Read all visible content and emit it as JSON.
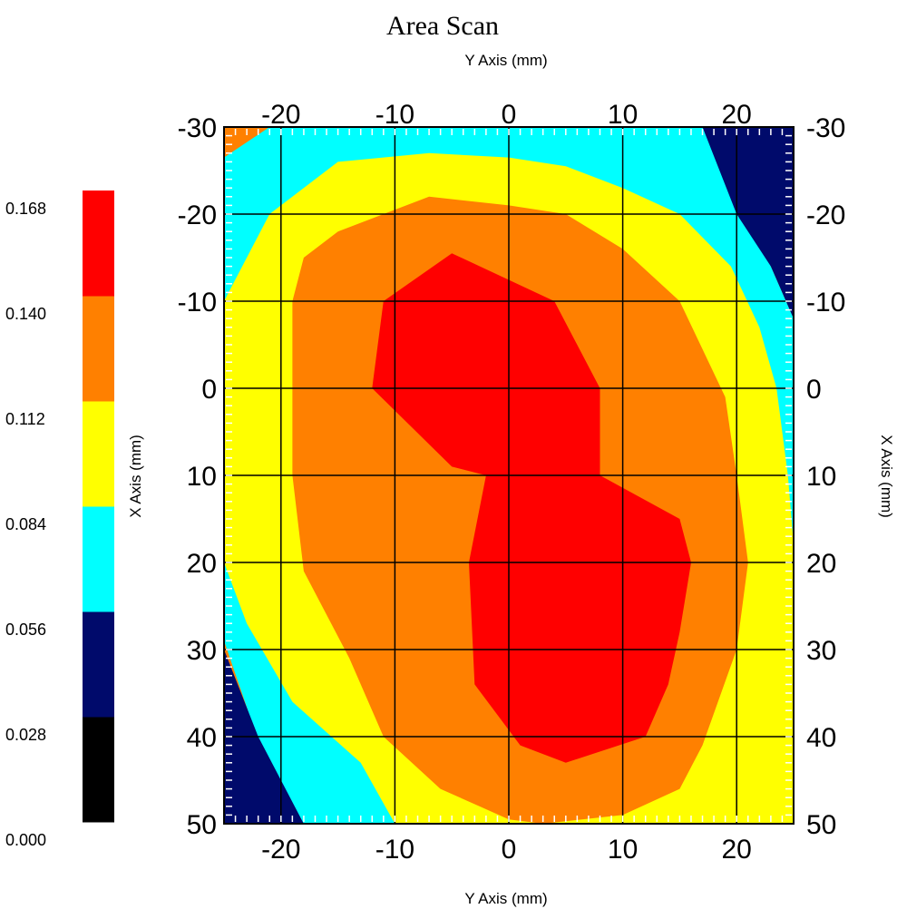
{
  "chart_data": {
    "type": "heatmap",
    "subtype": "filled-contour",
    "title": "Area Scan",
    "xlabel_top": "Y Axis (mm)",
    "xlabel_bottom": "Y Axis (mm)",
    "ylabel_left": "X Axis (mm)",
    "ylabel_right": "X Axis (mm)",
    "x_range": [
      -25,
      25
    ],
    "y_range": [
      -30,
      50
    ],
    "y_reversed": true,
    "x_ticks": [
      -20,
      -10,
      0,
      10,
      20
    ],
    "y_ticks": [
      -30,
      -20,
      -10,
      0,
      10,
      20,
      30,
      40,
      50
    ],
    "grid": true,
    "colorbar": {
      "position": "left",
      "levels": [
        "0.000",
        "0.028",
        "0.056",
        "0.084",
        "0.112",
        "0.140",
        "0.168"
      ],
      "colors": [
        "#000000",
        "#000a6b",
        "#00ffff",
        "#ffff00",
        "#ff8000",
        "#ff0000"
      ]
    },
    "contour_regions": [
      {
        "level": "0.056-0.084",
        "color": "#00ffff",
        "polygon": [
          [
            -25,
            -26.5
          ],
          [
            -21,
            -30
          ],
          [
            18,
            -30
          ],
          [
            23,
            -14
          ],
          [
            25,
            -8
          ],
          [
            25,
            50
          ],
          [
            -19.5,
            50
          ],
          [
            -25,
            29
          ]
        ]
      },
      {
        "level": "0.084-0.112",
        "color": "#ffff00",
        "polygon": [
          [
            -25,
            -10
          ],
          [
            -21,
            -20
          ],
          [
            -15,
            -26
          ],
          [
            -7,
            -27
          ],
          [
            0,
            -26.5
          ],
          [
            5,
            -25.5
          ],
          [
            10,
            -23
          ],
          [
            15,
            -20
          ],
          [
            19.5,
            -14
          ],
          [
            22,
            -7
          ],
          [
            23.5,
            0
          ],
          [
            24.5,
            10
          ],
          [
            25,
            18
          ],
          [
            25,
            50
          ],
          [
            -10,
            50
          ],
          [
            -13,
            43
          ],
          [
            -19,
            36
          ],
          [
            -23,
            27
          ],
          [
            -25,
            20
          ]
        ]
      },
      {
        "level": "0.112-0.140",
        "color": "#ff8000",
        "polygon": [
          [
            -19,
            -10
          ],
          [
            -18,
            -15
          ],
          [
            -15,
            -18
          ],
          [
            -7,
            -22
          ],
          [
            0,
            -21
          ],
          [
            5,
            -20
          ],
          [
            10,
            -16
          ],
          [
            15,
            -10
          ],
          [
            19,
            1
          ],
          [
            20,
            10
          ],
          [
            21,
            20
          ],
          [
            20,
            30
          ],
          [
            17,
            41
          ],
          [
            15,
            46
          ],
          [
            10,
            49
          ],
          [
            3,
            50
          ],
          [
            0,
            49.5
          ],
          [
            -6,
            46
          ],
          [
            -11,
            40
          ],
          [
            -14,
            31
          ],
          [
            -18,
            21
          ],
          [
            -19,
            10
          ]
        ]
      },
      {
        "level": "0.140-0.168",
        "color": "#ff0000",
        "polygon": [
          [
            -12,
            0
          ],
          [
            -11,
            -10
          ],
          [
            -5,
            -15.5
          ],
          [
            4,
            -10
          ],
          [
            8,
            0
          ],
          [
            8,
            10
          ],
          [
            15,
            15
          ],
          [
            16,
            20
          ],
          [
            15,
            28
          ],
          [
            14,
            34
          ],
          [
            12,
            40
          ],
          [
            5,
            43
          ],
          [
            1,
            41
          ],
          [
            -3,
            34
          ],
          [
            -3.5,
            20
          ],
          [
            -2,
            10
          ],
          [
            -5,
            9
          ]
        ]
      },
      {
        "level": "0.028-0.056",
        "color": "#000a6b",
        "polygon": [
          [
            17,
            -30
          ],
          [
            25,
            -30
          ],
          [
            25,
            -8
          ],
          [
            23,
            -14
          ],
          [
            20,
            -20
          ]
        ]
      },
      {
        "level": "0.028-0.056",
        "color": "#000a6b",
        "polygon": [
          [
            -25,
            30
          ],
          [
            -22,
            40
          ],
          [
            -18,
            50
          ],
          [
            -25,
            50
          ]
        ]
      }
    ]
  }
}
